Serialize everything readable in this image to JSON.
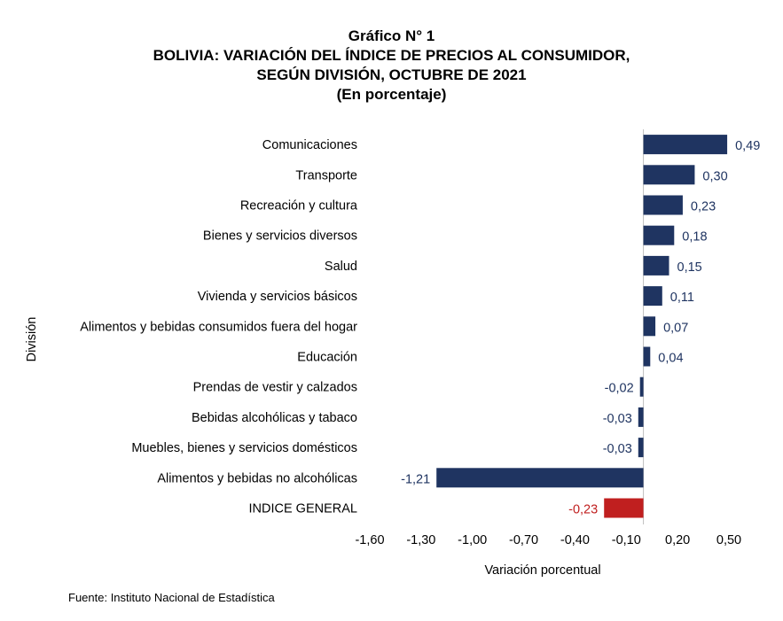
{
  "chart_data": {
    "type": "bar",
    "orientation": "horizontal",
    "title_lines": [
      "Gráfico N° 1",
      "BOLIVIA: VARIACIÓN DEL ÍNDICE DE PRECIOS AL CONSUMIDOR,",
      "SEGÚN DIVISIÓN, OCTUBRE DE 2021",
      "(En porcentaje)"
    ],
    "xlabel": "Variación porcentual",
    "ylabel": "División",
    "xlim": [
      -1.6,
      0.5
    ],
    "xticks": [
      "-1,60",
      "-1,30",
      "-1,00",
      "-0,70",
      "-0,40",
      "-0,10",
      "0,20",
      "0,50"
    ],
    "legend": "none",
    "grid": false,
    "colors": {
      "division": "#1f3461",
      "general": "#c01f1f",
      "axis": "#bfbfbf"
    },
    "categories": [
      "Comunicaciones",
      "Transporte",
      "Recreación y cultura",
      "Bienes y servicios diversos",
      "Salud",
      "Vivienda y servicios básicos",
      "Alimentos y bebidas consumidos fuera del hogar",
      "Educación",
      "Prendas de vestir y calzados",
      "Bebidas alcohólicas y tabaco",
      "Muebles, bienes y servicios domésticos",
      "Alimentos y bebidas no alcohólicas",
      "INDICE GENERAL"
    ],
    "values": [
      0.49,
      0.3,
      0.23,
      0.18,
      0.15,
      0.11,
      0.07,
      0.04,
      -0.02,
      -0.03,
      -0.03,
      -1.21,
      -0.23
    ],
    "labels": [
      "0,49",
      "0,30",
      "0,23",
      "0,18",
      "0,15",
      "0,11",
      "0,07",
      "0,04",
      "-0,02",
      "-0,03",
      "-0,03",
      "-1,21",
      "-0,23"
    ],
    "highlight": [
      "INDICE GENERAL"
    ]
  },
  "source": "Fuente: Instituto Nacional de Estadística"
}
